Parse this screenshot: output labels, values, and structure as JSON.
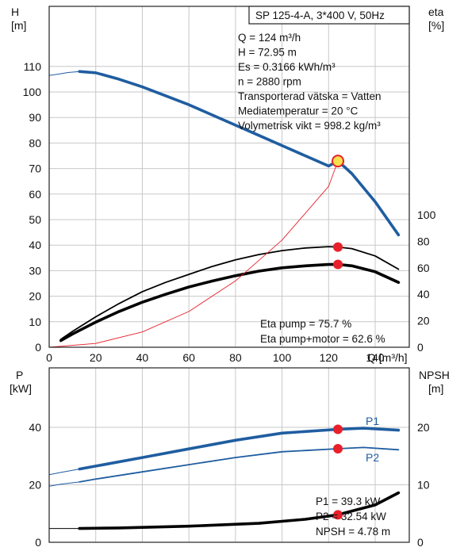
{
  "colors": {
    "blue": "#1f5da0",
    "black": "#000000",
    "red": "#e8202a",
    "grid": "#c8c8c8",
    "yellow": "#f4e04d"
  },
  "chart_data": [
    {
      "type": "line",
      "title": "SP 125-4-A, 3*400 V, 50Hz",
      "xlabel": "Q [m³/h]",
      "ylabel_left_name": "H",
      "ylabel_left_unit": "[m]",
      "ylabel_right_name": "eta",
      "ylabel_right_unit": "[%]",
      "xlim": [
        0,
        145
      ],
      "ylim_left": [
        0,
        120
      ],
      "ylim_right": [
        0,
        100
      ],
      "x_ticks": [
        "0",
        "20",
        "40",
        "60",
        "80",
        "100",
        "120",
        "140"
      ],
      "y_ticks_left": [
        "0",
        "10",
        "20",
        "30",
        "40",
        "50",
        "60",
        "70",
        "80",
        "90",
        "100",
        "110"
      ],
      "y_ticks_right": [
        "0",
        "20",
        "40",
        "60",
        "80",
        "100"
      ],
      "grid": true,
      "info_lines": [
        "Q = 124 m³/h",
        "H = 72.95 m",
        "Es = 0.3166 kWh/m³",
        "n = 2880 rpm",
        "Transporterad vätska = Vatten",
        "Mediatemperatur = 20 °C",
        "Volymetrisk vikt = 998.2 kg/m³"
      ],
      "eta_lines": [
        "Eta pump = 75.7 %",
        "Eta pump+motor = 62.6 %"
      ],
      "series": [
        {
          "role": "H curve",
          "axis": "left",
          "color": "#1f5da0",
          "x": [
            13,
            20,
            30,
            40,
            50,
            60,
            70,
            80,
            90,
            100,
            110,
            120,
            124,
            130,
            140,
            150
          ],
          "y": [
            108,
            107.5,
            105,
            102,
            98.5,
            95,
            91,
            87,
            83,
            79,
            75,
            71,
            73,
            68,
            57,
            44
          ]
        },
        {
          "role": "H extension",
          "axis": "left",
          "color": "#1f5da0",
          "x": [
            0,
            4,
            8,
            13
          ],
          "y": [
            106.5,
            107,
            107.6,
            108
          ]
        },
        {
          "role": "Eta pump",
          "axis": "right",
          "color": "#000000",
          "x": [
            5,
            10,
            20,
            30,
            40,
            50,
            60,
            70,
            80,
            90,
            100,
            110,
            120,
            124,
            130,
            140,
            150
          ],
          "y": [
            6,
            12,
            23,
            33,
            42,
            49,
            55,
            61,
            66,
            70,
            73,
            75,
            76,
            75.7,
            74.5,
            69,
            59
          ]
        },
        {
          "role": "Eta pump+motor",
          "axis": "right",
          "color": "#000000",
          "x": [
            5,
            10,
            20,
            30,
            40,
            50,
            60,
            70,
            80,
            90,
            100,
            110,
            120,
            124,
            130,
            140,
            150
          ],
          "y": [
            5,
            10,
            19,
            27,
            34,
            40,
            45.5,
            50,
            54,
            57.5,
            60,
            61.5,
            62.5,
            62.6,
            61.5,
            57,
            49
          ]
        },
        {
          "role": "System curve",
          "axis": "left",
          "color": "#e8202a",
          "x": [
            0,
            20,
            40,
            60,
            80,
            100,
            120,
            124
          ],
          "y": [
            0,
            1.5,
            6,
            14,
            26,
            42,
            63,
            72.95
          ]
        }
      ],
      "operating_points": [
        {
          "x": 124,
          "y": 72.95,
          "axis": "left",
          "highlight": true
        },
        {
          "x": 124,
          "y": 75.7,
          "axis": "right"
        },
        {
          "x": 124,
          "y": 62.6,
          "axis": "right"
        }
      ]
    },
    {
      "type": "line",
      "ylabel_left_name": "P",
      "ylabel_left_unit": "[kW]",
      "ylabel_right_name": "NPSH",
      "ylabel_right_unit": "[m]",
      "xlim": [
        0,
        145
      ],
      "ylim_left": [
        0,
        48
      ],
      "ylim_right": [
        0,
        24
      ],
      "y_ticks_left": [
        "0",
        "20",
        "40"
      ],
      "y_ticks_right": [
        "0",
        "10",
        "20"
      ],
      "grid": true,
      "series_labels": [
        "P1",
        "P2"
      ],
      "value_lines": [
        "P1 = 39.3 kW",
        "P2 = 32.54 kW",
        "NPSH = 4.78 m"
      ],
      "series": [
        {
          "name": "P1",
          "axis": "left",
          "color": "#1f5da0",
          "x": [
            13,
            20,
            40,
            60,
            80,
            100,
            124,
            135,
            150
          ],
          "y": [
            25.5,
            26.5,
            29.5,
            32.5,
            35.5,
            38,
            39.3,
            39.7,
            39
          ]
        },
        {
          "name": "P2",
          "axis": "left",
          "color": "#1f5da0",
          "x": [
            13,
            20,
            40,
            60,
            80,
            100,
            124,
            135,
            150
          ],
          "y": [
            21,
            22,
            24.5,
            27,
            29.5,
            31.5,
            32.54,
            33,
            32.2
          ]
        },
        {
          "role": "NPSH",
          "axis": "right",
          "color": "#000000",
          "x": [
            13,
            30,
            60,
            90,
            110,
            124,
            140,
            150
          ],
          "y": [
            2.4,
            2.5,
            2.8,
            3.3,
            4,
            4.78,
            6.5,
            8.6
          ]
        },
        {
          "role": "P1 extension",
          "axis": "left",
          "color": "#1f5da0",
          "x": [
            0,
            5,
            13
          ],
          "y": [
            23.5,
            24.3,
            25.5
          ]
        },
        {
          "role": "P2 extension",
          "axis": "left",
          "color": "#1f5da0",
          "x": [
            0,
            5,
            13
          ],
          "y": [
            19.5,
            20.2,
            21
          ]
        },
        {
          "role": "NPSH extension",
          "axis": "right",
          "color": "#000000",
          "x": [
            0,
            13
          ],
          "y": [
            2.4,
            2.4
          ]
        }
      ],
      "operating_points": [
        {
          "x": 124,
          "y": 39.3,
          "axis": "left"
        },
        {
          "x": 124,
          "y": 32.54,
          "axis": "left"
        },
        {
          "x": 124,
          "y": 4.78,
          "axis": "right"
        }
      ]
    }
  ]
}
